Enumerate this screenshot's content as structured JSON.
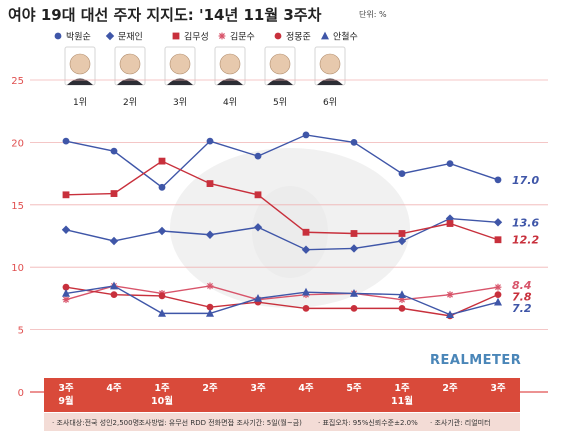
{
  "title": "여야 19대 대선 주자 지지도: '14년 11월 3주차",
  "unit": "단위: %",
  "brand": "REALMETER",
  "ranks": [
    "1위",
    "2위",
    "3위",
    "4위",
    "5위",
    "6위"
  ],
  "footer": [
    "· 조사대상:전국 성인2,500명",
    "· 조사방법: 유무선 RDD 전화면접",
    "· 조사기간: 5일(월~금)",
    "· 표집오차: 95%신뢰수준±2.0%",
    "· 조사기관: 리얼미터"
  ],
  "colors": {
    "blue": "#3f56a8",
    "red": "#c8303c",
    "pink": "#d8546a",
    "axis": "#e05050",
    "band": "#d94a3a"
  },
  "chart_data": {
    "type": "line",
    "title": "여야 19대 대선 주자 지지도: '14년 11월 3주차",
    "xlabel": "",
    "ylabel": "",
    "ylim": [
      0,
      25
    ],
    "yticks": [
      0,
      5,
      10,
      15,
      20,
      25
    ],
    "grid": true,
    "legend": "top",
    "categories": [
      {
        "top": "3주",
        "bottom": "9월"
      },
      {
        "top": "4주",
        "bottom": ""
      },
      {
        "top": "1주",
        "bottom": "10월"
      },
      {
        "top": "2주",
        "bottom": ""
      },
      {
        "top": "3주",
        "bottom": ""
      },
      {
        "top": "4주",
        "bottom": ""
      },
      {
        "top": "5주",
        "bottom": ""
      },
      {
        "top": "1주",
        "bottom": "11월"
      },
      {
        "top": "2주",
        "bottom": ""
      },
      {
        "top": "3주",
        "bottom": ""
      }
    ],
    "series": [
      {
        "name": "박원순",
        "color": "#3f56a8",
        "marker": "circle",
        "values": [
          20.1,
          19.3,
          16.4,
          20.1,
          18.9,
          20.6,
          20.0,
          17.5,
          18.3,
          17.0
        ],
        "end_label": "17.0"
      },
      {
        "name": "문재인",
        "color": "#3f56a8",
        "marker": "diamond",
        "values": [
          13.0,
          12.1,
          12.9,
          12.6,
          13.2,
          11.4,
          11.5,
          12.1,
          13.9,
          13.6
        ],
        "end_label": "13.6"
      },
      {
        "name": "김무성",
        "color": "#c8303c",
        "marker": "square",
        "values": [
          15.8,
          15.9,
          18.5,
          16.7,
          15.8,
          12.8,
          12.7,
          12.7,
          13.5,
          12.2
        ],
        "end_label": "12.2"
      },
      {
        "name": "김문수",
        "color": "#d8546a",
        "marker": "star",
        "values": [
          7.4,
          8.5,
          7.9,
          8.5,
          7.4,
          7.8,
          7.9,
          7.4,
          7.8,
          8.4
        ],
        "end_label": "8.4"
      },
      {
        "name": "정몽준",
        "color": "#c8303c",
        "marker": "circle",
        "values": [
          8.4,
          7.8,
          7.7,
          6.8,
          7.2,
          6.7,
          6.7,
          6.7,
          6.1,
          7.8
        ],
        "end_label": "7.8"
      },
      {
        "name": "안철수",
        "color": "#3f56a8",
        "marker": "triangle",
        "values": [
          7.9,
          8.5,
          6.3,
          6.3,
          7.5,
          8.0,
          7.9,
          7.8,
          6.2,
          7.2
        ],
        "end_label": "7.2"
      }
    ]
  }
}
